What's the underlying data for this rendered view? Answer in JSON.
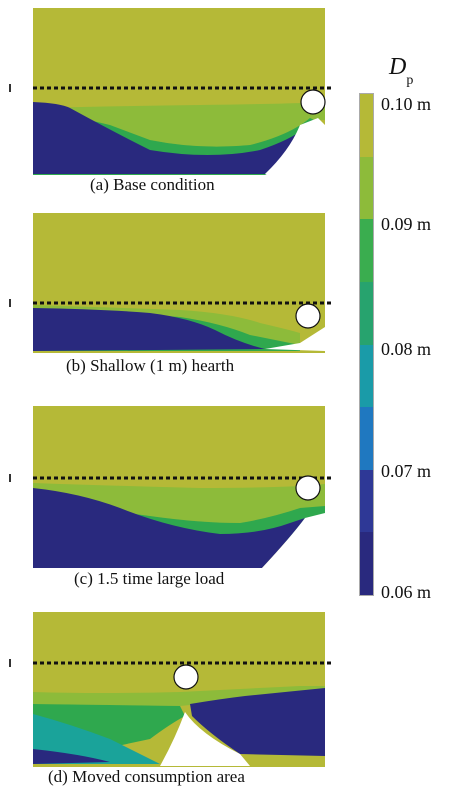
{
  "colorbar": {
    "symbol": "D",
    "subscript": "p",
    "labels": [
      "0.10 m",
      "0.09 m",
      "0.08 m",
      "0.07 m",
      "0.06 m"
    ],
    "colors": [
      "#b5b937",
      "#8dbb3a",
      "#3aad4f",
      "#27a36e",
      "#1a9ba8",
      "#1f78c0",
      "#2e3896",
      "#29297e"
    ]
  },
  "palette": {
    "yellow": "#b5b937",
    "lightgreen": "#8dbb3a",
    "green": "#2fa84e",
    "teal": "#1aa39a",
    "blue": "#2e3896",
    "navy": "#29297e"
  },
  "panels": [
    {
      "caption": "(a) Base condition"
    },
    {
      "caption": "(b) Shallow (1 m) hearth"
    },
    {
      "caption": "(c) 1.5 time large load"
    },
    {
      "caption": "(d) Moved consumption area"
    }
  ]
}
